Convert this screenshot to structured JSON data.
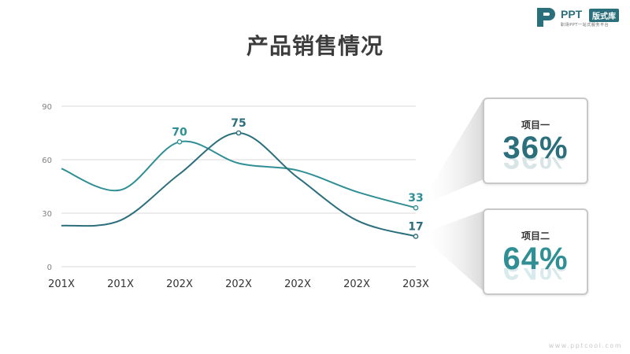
{
  "logo": {
    "mark_color": "#2b6f7c",
    "name": "PPT",
    "badge": "版式库",
    "tagline": "职场PPT一站式服务平台"
  },
  "title": "产品销售情况",
  "colors": {
    "series1": "#2f8f95",
    "series2": "#2b6f7c",
    "grid": "#d9d9d9",
    "axis_text": "#333333",
    "tick_text": "#7f7f7f"
  },
  "chart_data": {
    "type": "line",
    "title": "产品销售情况",
    "xlabel": "",
    "ylabel": "",
    "categories": [
      "201X",
      "201X",
      "202X",
      "202X",
      "202X",
      "202X",
      "203X"
    ],
    "y_ticks": [
      "0",
      "30",
      "60",
      "90"
    ],
    "ylim": [
      0,
      90
    ],
    "grid": true,
    "smooth": true,
    "series": [
      {
        "values": [
          55,
          43,
          70,
          58,
          54,
          42,
          33
        ],
        "labels": {
          "2": "70",
          "6": "33"
        }
      },
      {
        "values": [
          23,
          26,
          52,
          75,
          50,
          26,
          17
        ],
        "labels": {
          "3": "75",
          "6": "17"
        }
      }
    ]
  },
  "cards": [
    {
      "label": "项目一",
      "value": "36%"
    },
    {
      "label": "项目二",
      "value": "64%"
    }
  ],
  "footer": "www.pptcool.com"
}
